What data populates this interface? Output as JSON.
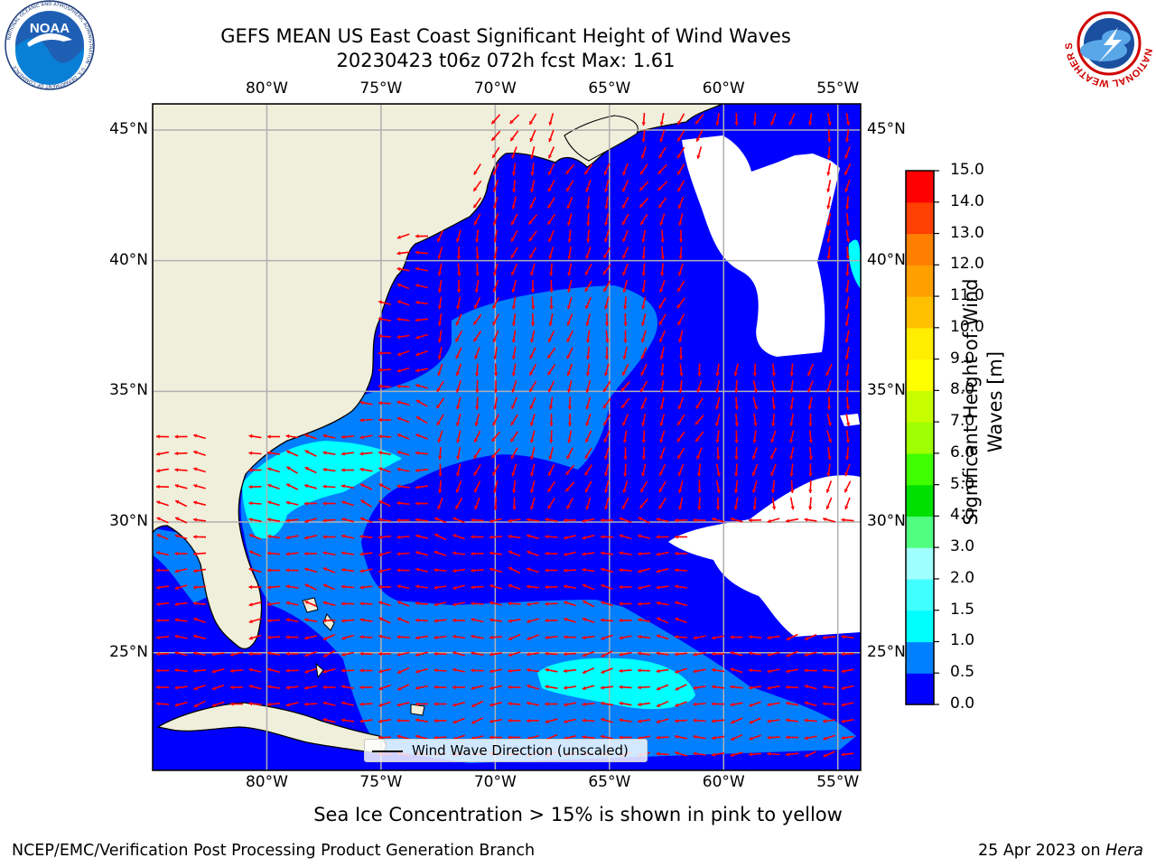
{
  "title": {
    "line1": "GEFS MEAN US East Coast Significant Height of Wind Waves",
    "line2": "20230423 t06z 072h fcst   Max: 1.61"
  },
  "map": {
    "lon_ticks": [
      "80°W",
      "75°W",
      "70°W",
      "65°W",
      "60°W",
      "55°W"
    ],
    "lat_ticks": [
      "45°N",
      "40°N",
      "35°N",
      "30°N",
      "25°N"
    ],
    "lon_range": [
      -85,
      -54
    ],
    "lat_range": [
      20.5,
      46
    ],
    "grid": true
  },
  "legend": {
    "label": "Wind Wave Direction (unscaled)"
  },
  "colorbar": {
    "label": "Significant Height of Wind Waves [m]",
    "ticks": [
      "0.0",
      "0.5",
      "1.0",
      "1.5",
      "2.0",
      "3.0",
      "4.0",
      "5.0",
      "6.0",
      "7.0",
      "8.0",
      "9.0",
      "10.0",
      "11.0",
      "12.0",
      "13.0",
      "14.0",
      "15.0"
    ],
    "colors": [
      "#0000ff",
      "#0080ff",
      "#00ffff",
      "#40ffff",
      "#a0ffff",
      "#50ff80",
      "#00e000",
      "#40ff00",
      "#a0ff00",
      "#c8ff00",
      "#ffff00",
      "#ffee00",
      "#ffc000",
      "#ffa000",
      "#ff8000",
      "#ff4000",
      "#ff0000"
    ]
  },
  "colors": {
    "land": "#efefdc",
    "coast": "#000000",
    "grid": "#b0b0b0",
    "arrow": "#ff0000",
    "no_data": "#ffffff"
  },
  "logos": {
    "noaa": {
      "text": "NOAA",
      "ring_text": "NATIONAL OCEANIC AND ATMOSPHERIC ADMINISTRATION · U.S. DEPARTMENT OF COMMERCE"
    },
    "nws": {
      "ring_text": "NATIONAL WEATHER SERVICE"
    }
  },
  "note": "Sea Ice Concentration > 15% is shown in pink to yellow",
  "footer": {
    "left": "NCEP/EMC/Verification Post Processing Product Generation Branch",
    "date": "25 Apr 2023 on ",
    "machine": "Hera"
  }
}
